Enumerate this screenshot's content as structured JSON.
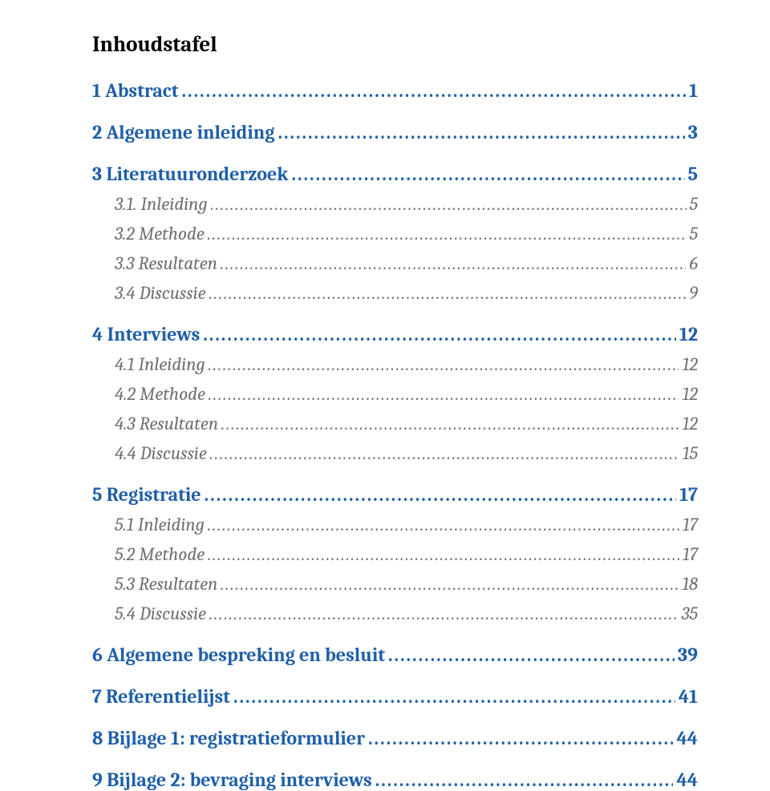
{
  "title": "Inhoudstafel",
  "palette": {
    "heading_color": "#1f5fa9",
    "sub_color": "#706f74",
    "title_color": "#000000",
    "background": "#ffffff",
    "heading_fontsize": 24,
    "sub_fontsize": 23,
    "title_fontsize": 27
  },
  "toc": [
    {
      "level": 1,
      "label": "1    Abstract",
      "page": "1",
      "spaced_before": false
    },
    {
      "level": 1,
      "label": "2    Algemene inleiding",
      "page": "3",
      "spaced_before": true
    },
    {
      "level": 1,
      "label": "3    Literatuuronderzoek",
      "page": "5",
      "spaced_before": true
    },
    {
      "level": 2,
      "label": "3.1. Inleiding",
      "page": "5",
      "spaced_before": false
    },
    {
      "level": 2,
      "label": "3.2 Methode",
      "page": "5",
      "spaced_before": false
    },
    {
      "level": 2,
      "label": "3.3 Resultaten",
      "page": "6",
      "spaced_before": false
    },
    {
      "level": 2,
      "label": "3.4 Discussie",
      "page": "9",
      "spaced_before": false
    },
    {
      "level": 1,
      "label": "4    Interviews",
      "page": "12",
      "spaced_before": true
    },
    {
      "level": 2,
      "label": "4.1 Inleiding",
      "page": "12",
      "spaced_before": false
    },
    {
      "level": 2,
      "label": "4.2 Methode",
      "page": "12",
      "spaced_before": false
    },
    {
      "level": 2,
      "label": "4.3 Resultaten",
      "page": "12",
      "spaced_before": false
    },
    {
      "level": 2,
      "label": "4.4 Discussie",
      "page": "15",
      "spaced_before": false
    },
    {
      "level": 1,
      "label": "5    Registratie",
      "page": "17",
      "spaced_before": true
    },
    {
      "level": 2,
      "label": "5.1 Inleiding",
      "page": "17",
      "spaced_before": false
    },
    {
      "level": 2,
      "label": "5.2 Methode",
      "page": "17",
      "spaced_before": false
    },
    {
      "level": 2,
      "label": "5.3 Resultaten",
      "page": "18",
      "spaced_before": false
    },
    {
      "level": 2,
      "label": "5.4 Discussie",
      "page": "35",
      "spaced_before": false
    },
    {
      "level": 1,
      "label": "6    Algemene bespreking en besluit",
      "page": "39",
      "spaced_before": true
    },
    {
      "level": 1,
      "label": "7    Referentielijst",
      "page": "41",
      "spaced_before": true
    },
    {
      "level": 1,
      "label": "8    Bijlage 1: registratieformulier",
      "page": "44",
      "spaced_before": true
    },
    {
      "level": 1,
      "label": "9    Bijlage 2: bevraging interviews",
      "page": "44",
      "spaced_before": true
    }
  ]
}
